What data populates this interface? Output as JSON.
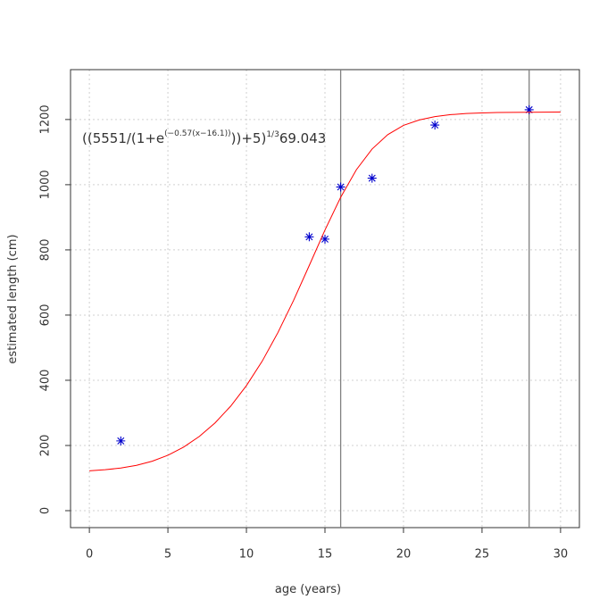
{
  "chart_data": {
    "type": "scatter",
    "xlabel": "age (years)",
    "ylabel": "estimated length (cm)",
    "xlim": [
      -1.2,
      31.2
    ],
    "ylim": [
      -52,
      1353
    ],
    "xticks": [
      0,
      5,
      10,
      15,
      20,
      25,
      30
    ],
    "yticks": [
      0,
      200,
      400,
      600,
      800,
      1000,
      1200
    ],
    "grid": true,
    "vlines": [
      16,
      28
    ],
    "vline_color": "#808080",
    "annotation": {
      "text": "((5551/(1+e",
      "exponent": "(−0.57(x−16.1))",
      "rest": "))+5)",
      "power": "1/3",
      "factor": "69.043"
    },
    "series": [
      {
        "type": "scatter",
        "color": "#0000cd",
        "x": [
          2,
          14,
          15,
          16,
          18,
          22,
          28
        ],
        "values": [
          214,
          840,
          833,
          993,
          1020,
          1183,
          1230
        ]
      },
      {
        "type": "line",
        "color": "#ff0000",
        "x": [
          0,
          1,
          2,
          3,
          4,
          5,
          6,
          7,
          8,
          9,
          10,
          11,
          12,
          13,
          14,
          15,
          16,
          17,
          18,
          19,
          20,
          21,
          22,
          23,
          24,
          25,
          26,
          27,
          28,
          29,
          30
        ],
        "values": [
          122.4,
          125.6,
          130.7,
          139.1,
          151.7,
          169.9,
          194.9,
          227.7,
          269.2,
          320.8,
          383.6,
          458.3,
          545.9,
          644.9,
          752.2,
          860.8,
          961.4,
          1045.9,
          1109.5,
          1153.7,
          1182.0,
          1198.6,
          1208.9,
          1214.9,
          1218.3,
          1220.3,
          1221.4,
          1222.0,
          1222.4,
          1222.6,
          1222.9
        ]
      }
    ]
  }
}
